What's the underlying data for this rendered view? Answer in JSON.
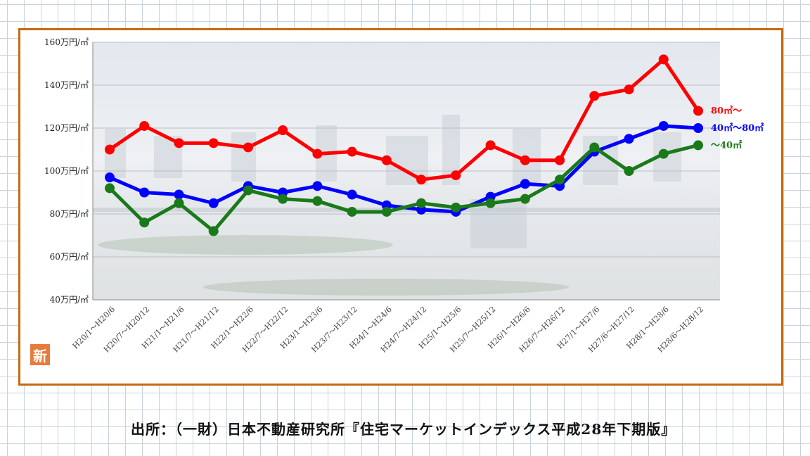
{
  "source_text": "出所：（一財）日本不動産研究所『住宅マーケットインデックス平成28年下期版』",
  "badge_text": "新",
  "chart_data": {
    "type": "line",
    "title": "",
    "xlabel": "",
    "ylabel": "",
    "ylim": [
      40,
      160
    ],
    "y_ticks": [
      160,
      140,
      120,
      100,
      80,
      60,
      40
    ],
    "y_tick_labels": [
      "160万円/㎡",
      "140万円/㎡",
      "120万円/㎡",
      "100万円/㎡",
      "80万円/㎡",
      "60万円/㎡",
      "40万円/㎡"
    ],
    "grid": true,
    "legend": "end-of-line labels",
    "categories": [
      "H20/1～H20/6",
      "H20/7～H20/12",
      "H21/1～H21/6",
      "H21/7～H21/12",
      "H22/1～H22/6",
      "H22/7～H22/12",
      "H23/1～H23/6",
      "H23/7～H23/12",
      "H24/1～H24/6",
      "H24/7～H24/12",
      "H25/1～H25/6",
      "H25/7～H25/12",
      "H26/1～H26/6",
      "H26/7～H26/12",
      "H27/1～H27/6",
      "H27/6～H27/12",
      "H28/1～H28/6",
      "H28/6～H28/12"
    ],
    "series": [
      {
        "name": "80㎡～",
        "color": "#ff0000",
        "values": [
          110,
          121,
          113,
          113,
          111,
          119,
          108,
          109,
          105,
          96,
          98,
          112,
          105,
          105,
          135,
          138,
          152,
          128
        ]
      },
      {
        "name": "40㎡～80㎡",
        "color": "#0000ff",
        "values": [
          97,
          90,
          89,
          85,
          93,
          90,
          93,
          89,
          84,
          82,
          81,
          88,
          94,
          93,
          109,
          115,
          121,
          120
        ]
      },
      {
        "name": "～40㎡",
        "color": "#1a7a1a",
        "values": [
          92,
          76,
          85,
          72,
          91,
          87,
          86,
          81,
          81,
          85,
          83,
          85,
          87,
          96,
          111,
          100,
          108,
          112
        ]
      }
    ]
  }
}
